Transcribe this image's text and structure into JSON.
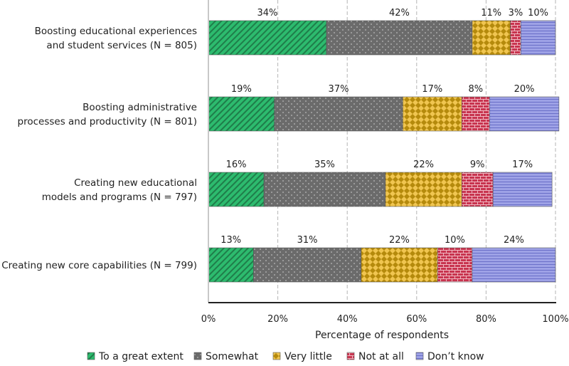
{
  "chart_data": {
    "type": "bar",
    "orientation": "horizontal",
    "stacked": true,
    "categories": [
      [
        "Boosting educational experiences",
        "and student services (N = 805)"
      ],
      [
        "Boosting administrative",
        "processes and productivity (N = 801)"
      ],
      [
        "Creating new educational",
        "models and programs (N = 797)"
      ],
      [
        "Creating new core capabilities (N = 799)"
      ]
    ],
    "series": [
      {
        "name": "To a great extent",
        "values": [
          34,
          19,
          16,
          13
        ],
        "color": "#2dbb6e",
        "pattern": "diagonal-stripes"
      },
      {
        "name": "Somewhat",
        "values": [
          42,
          37,
          35,
          31
        ],
        "color": "#6b6b6b",
        "pattern": "dots"
      },
      {
        "name": "Very little",
        "values": [
          11,
          17,
          22,
          22
        ],
        "color": "#d9a81a",
        "pattern": "diamonds"
      },
      {
        "name": "Not at all",
        "values": [
          3,
          8,
          9,
          10
        ],
        "color": "#c8344f",
        "pattern": "bricks"
      },
      {
        "name": "Don’t know",
        "values": [
          10,
          20,
          17,
          24
        ],
        "color": "#8b8fdc",
        "pattern": "horizontal-lines"
      }
    ],
    "xlabel": "Percentage of respondents",
    "ylabel": "",
    "xlim": [
      0,
      100
    ],
    "xticks": [
      "0%",
      "20%",
      "40%",
      "60%",
      "80%",
      "100%"
    ],
    "grid": "vertical dashed",
    "legend": "bottom"
  }
}
